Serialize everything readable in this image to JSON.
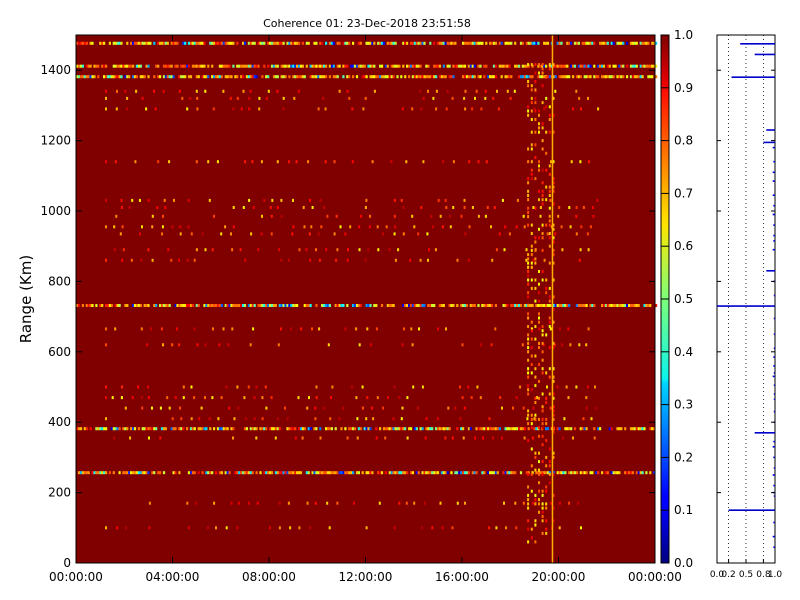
{
  "chart_data": [
    {
      "type": "heatmap",
      "title": "Coherence 01: 23-Dec-2018 23:51:58",
      "ylabel": "Range (Km)",
      "xlabel": "",
      "xlim_hours": [
        0,
        24
      ],
      "x_ticks": [
        "00:00:00",
        "04:00:00",
        "08:00:00",
        "12:00:00",
        "16:00:00",
        "20:00:00",
        "00:00:00"
      ],
      "ylim": [
        0,
        1500
      ],
      "y_ticks": [
        0,
        200,
        400,
        600,
        800,
        1000,
        1200,
        1400
      ],
      "colormap": "jet",
      "background_value": 1.0,
      "colorbar": {
        "range": [
          0.0,
          1.0
        ],
        "ticks": [
          "0.0",
          "0.1",
          "0.2",
          "0.3",
          "0.4",
          "0.5",
          "0.6",
          "0.7",
          "0.8",
          "0.9",
          "1.0"
        ]
      },
      "noise_bands_km": [
        1475,
        1410,
        1380,
        730,
        380,
        255
      ],
      "current_time_marker_hours": 19.75,
      "grid": false
    },
    {
      "type": "line",
      "title": "",
      "xlim": [
        0.0,
        1.0
      ],
      "x_ticks": [
        "0.0",
        "0.2",
        "0.5",
        "0.8",
        "1.0"
      ],
      "ylim": [
        0,
        1500
      ],
      "series": [
        {
          "range_km": [
            1475,
            1445,
            1380,
            1230,
            1195,
            1180,
            1140,
            1110,
            1085,
            1045,
            1015,
            990,
            960,
            930,
            915,
            890,
            830,
            800,
            760,
            730,
            695,
            650,
            610,
            585,
            560,
            540,
            530,
            505,
            480,
            465,
            430,
            400,
            370,
            345,
            330,
            300,
            270,
            250,
            220,
            200,
            190,
            150,
            115,
            75,
            45
          ],
          "value": [
            0.4,
            0.65,
            0.25,
            0.85,
            0.8,
            0.96,
            0.97,
            0.96,
            0.96,
            0.96,
            0.97,
            0.96,
            0.97,
            0.97,
            0.97,
            0.96,
            0.85,
            0.97,
            0.98,
            0.99,
            0.98,
            0.98,
            0.98,
            0.97,
            0.97,
            0.98,
            0.96,
            0.98,
            0.98,
            0.98,
            0.98,
            0.98,
            0.65,
            0.97,
            0.96,
            0.97,
            0.98,
            0.96,
            0.97,
            0.96,
            0.98,
            0.2,
            0.97,
            0.96,
            0.97
          ]
        }
      ],
      "highlight_values": [
        0.0,
        0.12,
        0.18,
        0.2,
        0.25,
        0.3,
        0.32,
        0.4,
        0.5,
        0.65,
        0.8,
        0.85
      ]
    }
  ]
}
